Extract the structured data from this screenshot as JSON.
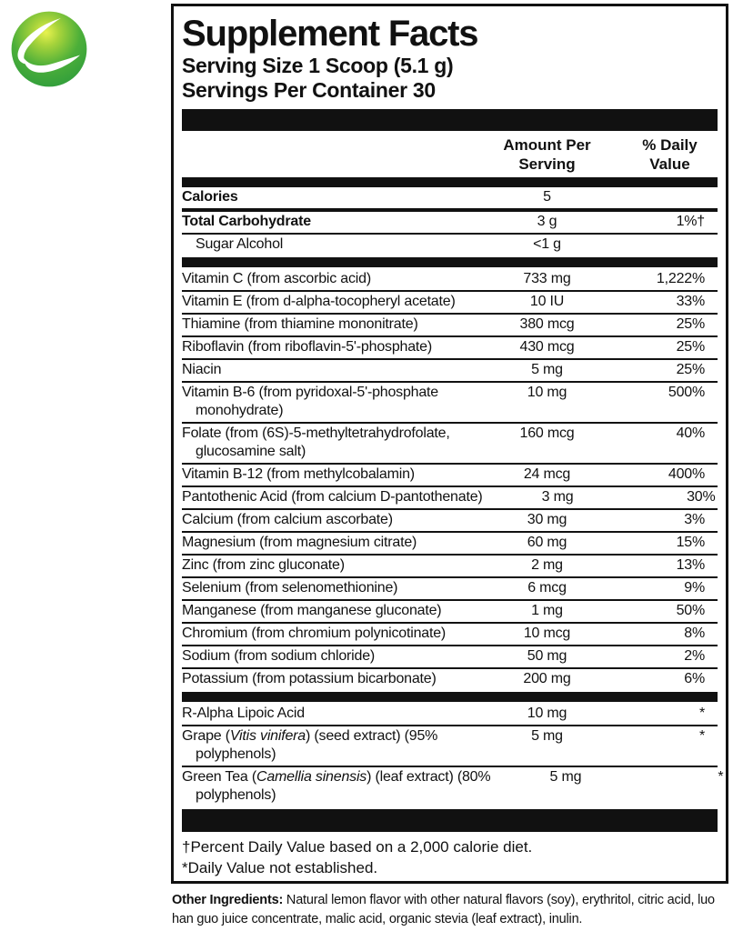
{
  "logo": {
    "name": "green-globe-logo"
  },
  "panel": {
    "title": "Supplement Facts",
    "serving_size": "Serving Size 1 Scoop (5.1 g)",
    "servings_per_container": "Servings Per Container 30",
    "col_amount": "Amount Per\nServing",
    "col_dv": "% Daily\nValue",
    "rows": [
      {
        "parts": [
          {
            "t": "Calories"
          }
        ],
        "amount": "5",
        "dv": "",
        "bold": true,
        "sep": "medium"
      },
      {
        "parts": [
          {
            "t": "Total Carbohydrate"
          }
        ],
        "amount": "3 g",
        "dv": "1%†",
        "bold": true,
        "sep": "thin"
      },
      {
        "parts": [
          {
            "t": "Sugar Alcohol"
          }
        ],
        "amount": "<1 g",
        "dv": "",
        "indent": true,
        "sep": "bar"
      },
      {
        "parts": [
          {
            "t": "Vitamin C (from ascorbic acid)"
          }
        ],
        "amount": "733 mg",
        "dv": "1,222%",
        "sep": "thin"
      },
      {
        "parts": [
          {
            "t": "Vitamin E (from d-alpha-tocopheryl acetate)"
          }
        ],
        "amount": "10 IU",
        "dv": "33%",
        "sep": "thin"
      },
      {
        "parts": [
          {
            "t": "Thiamine (from thiamine mononitrate)"
          }
        ],
        "amount": "380 mcg",
        "dv": "25%",
        "sep": "thin"
      },
      {
        "parts": [
          {
            "t": "Riboflavin (from riboflavin-5'-phosphate)"
          }
        ],
        "amount": "430 mcg",
        "dv": "25%",
        "sep": "thin"
      },
      {
        "parts": [
          {
            "t": "Niacin"
          }
        ],
        "amount": "5 mg",
        "dv": "25%",
        "sep": "thin"
      },
      {
        "parts": [
          {
            "t": "Vitamin B-6 (from pyridoxal-5'-phosphate\nmonohydrate)"
          }
        ],
        "amount": "10 mg",
        "dv": "500%",
        "sep": "thin"
      },
      {
        "parts": [
          {
            "t": "Folate (from (6S)-5-methyltetrahydrofolate,\nglucosamine salt)"
          }
        ],
        "amount": "160 mcg",
        "dv": "40%",
        "sep": "thin"
      },
      {
        "parts": [
          {
            "t": "Vitamin B-12 (from methylcobalamin)"
          }
        ],
        "amount": "24 mcg",
        "dv": "400%",
        "sep": "thin"
      },
      {
        "parts": [
          {
            "t": "Pantothenic Acid (from calcium D-pantothenate)"
          }
        ],
        "amount": "3 mg",
        "dv": "30%",
        "sep": "thin"
      },
      {
        "parts": [
          {
            "t": "Calcium (from calcium ascorbate)"
          }
        ],
        "amount": "30 mg",
        "dv": "3%",
        "sep": "thin"
      },
      {
        "parts": [
          {
            "t": "Magnesium (from magnesium citrate)"
          }
        ],
        "amount": "60 mg",
        "dv": "15%",
        "sep": "thin"
      },
      {
        "parts": [
          {
            "t": "Zinc (from zinc gluconate)"
          }
        ],
        "amount": "2 mg",
        "dv": "13%",
        "sep": "thin"
      },
      {
        "parts": [
          {
            "t": "Selenium (from selenomethionine)"
          }
        ],
        "amount": "6 mcg",
        "dv": "9%",
        "sep": "thin"
      },
      {
        "parts": [
          {
            "t": "Manganese (from manganese gluconate)"
          }
        ],
        "amount": "1 mg",
        "dv": "50%",
        "sep": "thin"
      },
      {
        "parts": [
          {
            "t": "Chromium (from chromium polynicotinate)"
          }
        ],
        "amount": "10 mcg",
        "dv": "8%",
        "sep": "thin"
      },
      {
        "parts": [
          {
            "t": "Sodium (from sodium chloride)"
          }
        ],
        "amount": "50 mg",
        "dv": "2%",
        "sep": "thin"
      },
      {
        "parts": [
          {
            "t": "Potassium (from potassium bicarbonate)"
          }
        ],
        "amount": "200 mg",
        "dv": "6%",
        "sep": "bar"
      },
      {
        "parts": [
          {
            "t": "R-Alpha Lipoic Acid"
          }
        ],
        "amount": "10 mg",
        "dv": "*",
        "sep": "thin"
      },
      {
        "parts": [
          {
            "t": "Grape ("
          },
          {
            "t": "Vitis vinifera",
            "i": true
          },
          {
            "t": ") (seed extract) (95%\npolyphenols)"
          }
        ],
        "amount": "5 mg",
        "dv": "*",
        "sep": "thin"
      },
      {
        "parts": [
          {
            "t": "Green Tea ("
          },
          {
            "t": "Camellia sinensis",
            "i": true
          },
          {
            "t": ") (leaf extract) (80%\npolyphenols)"
          }
        ],
        "amount": "5 mg",
        "dv": "*",
        "sep": "bar-tall"
      }
    ],
    "footnotes": [
      "†Percent Daily Value based on a 2,000 calorie diet.",
      "*Daily Value not established."
    ]
  },
  "other_ingredients": {
    "label": "Other Ingredients:",
    "text": " Natural lemon flavor with other natural flavors (soy), erythritol, citric acid, luo han guo juice concentrate, malic acid, organic stevia (leaf extract), inulin."
  },
  "colors": {
    "ink": "#111111",
    "logo_green_edge": "#2e9c3c",
    "logo_green_mid": "#4caf39",
    "logo_highlight": "#e8f24f",
    "swoosh": "#ffffff"
  }
}
